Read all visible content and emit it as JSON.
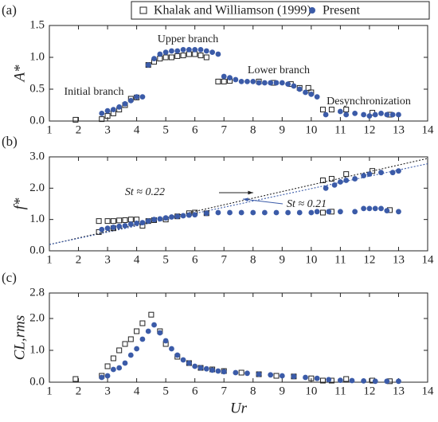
{
  "chart_data": [
    {
      "type": "scatter",
      "panel": "(a)",
      "ylabel": "A*",
      "legend": "top",
      "xlim": [
        1,
        14
      ],
      "xticks": [
        1,
        2,
        3,
        4,
        5,
        6,
        7,
        8,
        9,
        10,
        11,
        12,
        13,
        14
      ],
      "ylim": [
        0,
        1.5
      ],
      "yticks": [
        {
          "value": 0,
          "label": "0.0"
        },
        0.5,
        {
          "value": 1,
          "label": "1.0"
        },
        1.5
      ],
      "annotations": [
        "Initial branch",
        "Upper branch",
        "Lower branch",
        "Desynchronization"
      ],
      "series": [
        {
          "name": "Khalak and Williamson (1999)",
          "marker": "square",
          "color": "#222222",
          "x": [
            1.9,
            2.8,
            3.0,
            3.2,
            3.4,
            3.6,
            3.8,
            4.0,
            4.4,
            4.6,
            4.8,
            5.0,
            5.2,
            5.4,
            5.6,
            5.8,
            6.0,
            6.2,
            6.4,
            6.8,
            7.0,
            7.2,
            8.2,
            8.7,
            9.3,
            9.6,
            9.9,
            10.0,
            10.4,
            10.7,
            11.2,
            12.1,
            12.7
          ],
          "y": [
            0.02,
            0.03,
            0.08,
            0.12,
            0.18,
            0.25,
            0.35,
            0.37,
            0.88,
            0.93,
            0.98,
            1.0,
            1.0,
            1.02,
            1.03,
            1.05,
            1.05,
            1.03,
            1.0,
            0.62,
            0.62,
            0.63,
            0.62,
            0.6,
            0.58,
            0.52,
            0.52,
            0.45,
            0.18,
            0.18,
            0.18,
            0.13,
            0.1
          ]
        },
        {
          "name": "Present",
          "marker": "circle",
          "color": "#3b5ba8",
          "x": [
            2.8,
            3.0,
            3.2,
            3.4,
            3.6,
            3.8,
            4.0,
            4.2,
            4.4,
            4.6,
            4.8,
            5.0,
            5.2,
            5.4,
            5.6,
            5.8,
            6.0,
            6.2,
            6.4,
            6.6,
            6.8,
            7.0,
            7.2,
            7.4,
            7.6,
            7.8,
            8.0,
            8.2,
            8.4,
            8.6,
            8.8,
            9.0,
            9.2,
            9.4,
            9.6,
            9.8,
            10.0,
            10.2,
            10.5,
            11.0,
            11.2,
            11.5,
            11.8,
            12.0,
            12.2,
            12.4,
            12.6,
            12.8,
            13.0
          ],
          "y": [
            0.12,
            0.16,
            0.18,
            0.22,
            0.27,
            0.32,
            0.38,
            0.38,
            0.88,
            0.98,
            1.05,
            1.08,
            1.1,
            1.1,
            1.12,
            1.12,
            1.12,
            1.12,
            1.1,
            1.08,
            1.05,
            0.7,
            0.68,
            0.65,
            0.62,
            0.62,
            0.62,
            0.6,
            0.6,
            0.6,
            0.6,
            0.6,
            0.58,
            0.55,
            0.5,
            0.45,
            0.42,
            0.38,
            0.1,
            0.15,
            0.1,
            0.12,
            0.1,
            0.08,
            0.1,
            0.12,
            0.1,
            0.1,
            0.1
          ]
        }
      ]
    },
    {
      "type": "scatter",
      "panel": "(b)",
      "ylabel": "f*",
      "xlim": [
        1,
        14
      ],
      "xticks": [
        1,
        2,
        3,
        4,
        5,
        6,
        7,
        8,
        9,
        10,
        11,
        12,
        13,
        14
      ],
      "ylim": [
        0,
        3
      ],
      "yticks": [
        {
          "value": 0,
          "label": "0.0"
        },
        {
          "value": 1,
          "label": "1.0"
        },
        {
          "value": 2,
          "label": "2.0"
        },
        {
          "value": 3,
          "label": "3.0"
        }
      ],
      "lines": [
        {
          "label": "St ≈ 0.22",
          "color": "#222222",
          "x": [
            1,
            14
          ],
          "y": [
            0.2,
            2.95
          ]
        },
        {
          "label": "St ≈ 0.21",
          "color": "#3b5ba8",
          "x": [
            1,
            14
          ],
          "y": [
            0.2,
            2.78
          ]
        }
      ],
      "series": [
        {
          "name": "Khalak and Williamson (1999)",
          "marker": "square",
          "color": "#222222",
          "x": [
            2.7,
            2.7,
            3.0,
            3.2,
            3.2,
            3.4,
            3.6,
            3.8,
            4.0,
            4.2,
            4.4,
            4.6,
            5.0,
            5.4,
            5.8,
            6.0,
            6.4,
            10.4,
            10.4,
            10.7,
            10.7,
            11.2,
            12.1,
            12.7
          ],
          "y": [
            0.95,
            0.6,
            0.95,
            0.95,
            0.72,
            0.97,
            0.98,
            1.0,
            1.0,
            0.8,
            0.95,
            0.98,
            1.0,
            1.1,
            1.2,
            1.22,
            1.2,
            2.25,
            1.22,
            2.3,
            1.25,
            2.45,
            2.55,
            1.3
          ]
        },
        {
          "name": "Present",
          "marker": "circle",
          "color": "#3b5ba8",
          "x": [
            2.8,
            3.0,
            3.2,
            3.4,
            3.6,
            3.8,
            4.0,
            4.2,
            4.4,
            4.6,
            4.8,
            5.0,
            5.2,
            5.4,
            5.6,
            5.8,
            6.0,
            6.4,
            6.8,
            7.2,
            7.6,
            8.0,
            8.4,
            8.8,
            9.2,
            9.6,
            10.0,
            10.2,
            10.6,
            11.0,
            11.5,
            11.8,
            12.0,
            12.2,
            12.4,
            12.6,
            13.0,
            10.5,
            10.8,
            11.0,
            11.2,
            11.5,
            11.8,
            12.0,
            12.4,
            12.8,
            13.0
          ],
          "y": [
            0.68,
            0.72,
            0.75,
            0.78,
            0.8,
            0.85,
            0.88,
            0.9,
            0.95,
            1.0,
            1.02,
            1.05,
            1.08,
            1.1,
            1.12,
            1.14,
            1.15,
            1.2,
            1.22,
            1.22,
            1.22,
            1.22,
            1.22,
            1.22,
            1.22,
            1.22,
            1.22,
            1.25,
            1.25,
            1.25,
            1.25,
            1.35,
            1.35,
            1.35,
            1.35,
            1.28,
            1.25,
            2.0,
            2.1,
            2.2,
            2.25,
            2.3,
            2.4,
            2.45,
            2.5,
            2.5,
            2.55
          ]
        }
      ]
    },
    {
      "type": "scatter",
      "panel": "(c)",
      "ylabel": "CL,rms",
      "xlabel": "Ur",
      "xlim": [
        1,
        14
      ],
      "xticks": [
        1,
        2,
        3,
        4,
        5,
        6,
        7,
        8,
        9,
        10,
        11,
        12,
        13,
        14
      ],
      "ylim": [
        0,
        2.8
      ],
      "yticks": [
        {
          "value": 0,
          "label": "0.0"
        },
        {
          "value": 1,
          "label": "1.0"
        },
        {
          "value": 2,
          "label": "2.0"
        },
        2.8
      ],
      "series": [
        {
          "name": "Khalak and Williamson (1999)",
          "marker": "square",
          "color": "#222222",
          "x": [
            1.9,
            2.8,
            3.0,
            3.2,
            3.4,
            3.6,
            3.8,
            4.0,
            4.2,
            4.5,
            4.8,
            5.0,
            5.4,
            5.8,
            6.2,
            6.6,
            7.0,
            7.6,
            8.2,
            8.8,
            9.4,
            10.0,
            10.4,
            10.7,
            11.2,
            12.1,
            12.7
          ],
          "y": [
            0.1,
            0.2,
            0.5,
            0.75,
            1.0,
            1.2,
            1.35,
            1.6,
            1.85,
            2.12,
            1.6,
            1.2,
            0.8,
            0.6,
            0.45,
            0.4,
            0.35,
            0.3,
            0.25,
            0.2,
            0.18,
            0.12,
            0.05,
            0.05,
            0.1,
            0.05,
            0.03
          ]
        },
        {
          "name": "Present",
          "marker": "circle",
          "color": "#3b5ba8",
          "x": [
            2.8,
            3.0,
            3.2,
            3.4,
            3.6,
            3.8,
            4.0,
            4.2,
            4.4,
            4.6,
            4.8,
            5.0,
            5.2,
            5.4,
            5.6,
            5.8,
            6.0,
            6.2,
            6.4,
            6.6,
            6.8,
            7.0,
            7.4,
            7.8,
            8.2,
            8.6,
            9.0,
            9.4,
            9.8,
            10.2,
            10.6,
            11.0,
            11.4,
            11.8,
            12.2,
            12.6,
            13.0
          ],
          "y": [
            0.15,
            0.2,
            0.4,
            0.45,
            0.6,
            0.85,
            1.05,
            1.35,
            1.6,
            1.8,
            1.55,
            1.3,
            1.05,
            0.85,
            0.7,
            0.6,
            0.5,
            0.45,
            0.42,
            0.38,
            0.35,
            0.33,
            0.3,
            0.28,
            0.25,
            0.23,
            0.2,
            0.18,
            0.15,
            0.12,
            0.08,
            0.06,
            0.05,
            0.04,
            0.03,
            0.03,
            0.03
          ]
        }
      ]
    }
  ]
}
